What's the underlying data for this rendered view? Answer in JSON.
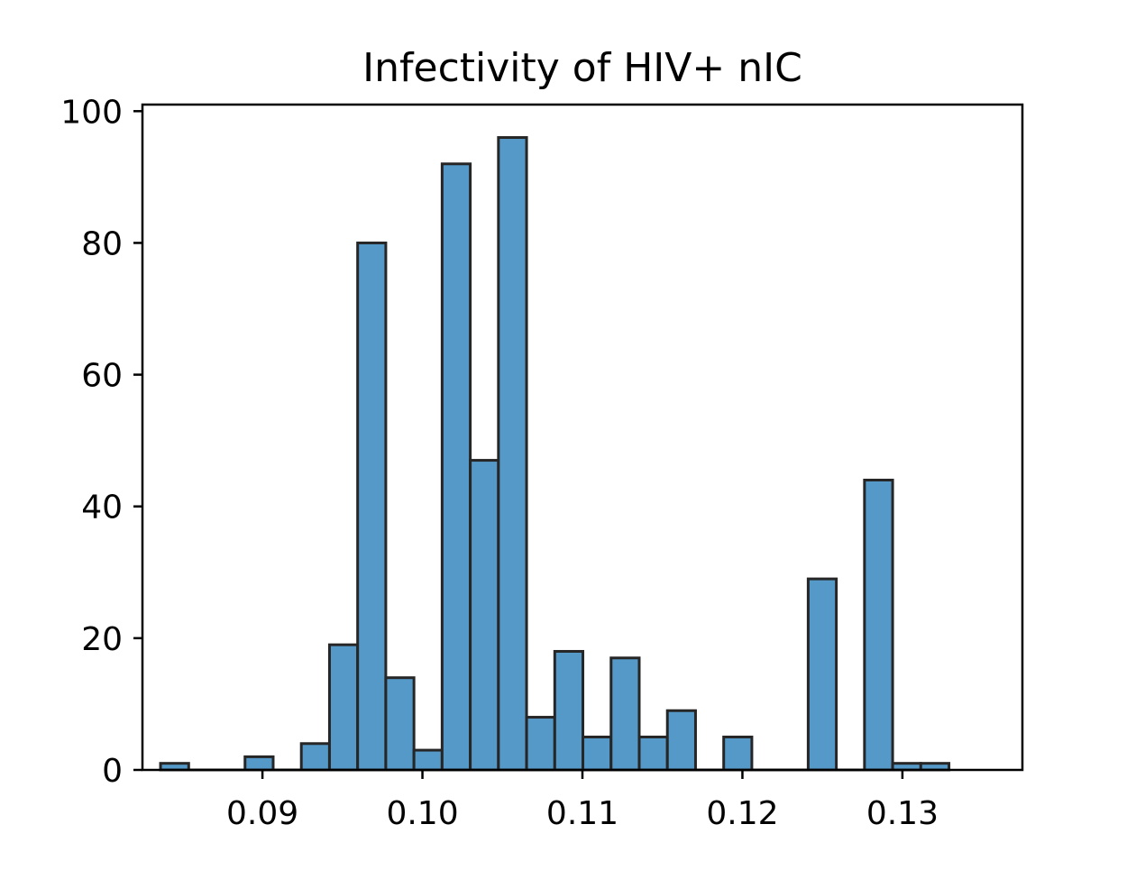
{
  "chart_data": {
    "type": "bar",
    "title": "Infectivity of HIV+ nIC",
    "xlabel": "",
    "ylabel": "",
    "xlim": [
      0.0825,
      0.1375
    ],
    "ylim": [
      0,
      101
    ],
    "x_ticks": [
      0.09,
      0.1,
      0.11,
      0.12,
      0.13
    ],
    "x_tick_labels": [
      "0.09",
      "0.10",
      "0.11",
      "0.12",
      "0.13"
    ],
    "y_ticks": [
      0,
      20,
      40,
      60,
      80,
      100
    ],
    "y_tick_labels": [
      "0",
      "20",
      "40",
      "60",
      "80",
      "100"
    ],
    "bar_color": "#5599c8",
    "edge_color": "#262626",
    "grid": false,
    "bins": [
      {
        "x0": 0.08363,
        "x1": 0.08539,
        "value": 1
      },
      {
        "x0": 0.08539,
        "x1": 0.08715,
        "value": 0
      },
      {
        "x0": 0.08715,
        "x1": 0.08891,
        "value": 0
      },
      {
        "x0": 0.08891,
        "x1": 0.09067,
        "value": 2
      },
      {
        "x0": 0.09067,
        "x1": 0.09243,
        "value": 0
      },
      {
        "x0": 0.09243,
        "x1": 0.09419,
        "value": 4
      },
      {
        "x0": 0.09419,
        "x1": 0.09595,
        "value": 19
      },
      {
        "x0": 0.09595,
        "x1": 0.09771,
        "value": 80
      },
      {
        "x0": 0.09771,
        "x1": 0.09947,
        "value": 14
      },
      {
        "x0": 0.09947,
        "x1": 0.10123,
        "value": 3
      },
      {
        "x0": 0.10123,
        "x1": 0.10299,
        "value": 92
      },
      {
        "x0": 0.10299,
        "x1": 0.10475,
        "value": 47
      },
      {
        "x0": 0.10475,
        "x1": 0.10651,
        "value": 96
      },
      {
        "x0": 0.10651,
        "x1": 0.10827,
        "value": 8
      },
      {
        "x0": 0.10827,
        "x1": 0.11003,
        "value": 18
      },
      {
        "x0": 0.11003,
        "x1": 0.11179,
        "value": 5
      },
      {
        "x0": 0.11179,
        "x1": 0.11355,
        "value": 17
      },
      {
        "x0": 0.11355,
        "x1": 0.11531,
        "value": 5
      },
      {
        "x0": 0.11531,
        "x1": 0.11707,
        "value": 9
      },
      {
        "x0": 0.11707,
        "x1": 0.11883,
        "value": 0
      },
      {
        "x0": 0.11883,
        "x1": 0.12059,
        "value": 5
      },
      {
        "x0": 0.12059,
        "x1": 0.12235,
        "value": 0
      },
      {
        "x0": 0.12235,
        "x1": 0.12411,
        "value": 0
      },
      {
        "x0": 0.12411,
        "x1": 0.12587,
        "value": 29
      },
      {
        "x0": 0.12587,
        "x1": 0.12763,
        "value": 0
      },
      {
        "x0": 0.12763,
        "x1": 0.12939,
        "value": 44
      },
      {
        "x0": 0.12939,
        "x1": 0.13115,
        "value": 1
      },
      {
        "x0": 0.13115,
        "x1": 0.13291,
        "value": 1
      }
    ]
  }
}
